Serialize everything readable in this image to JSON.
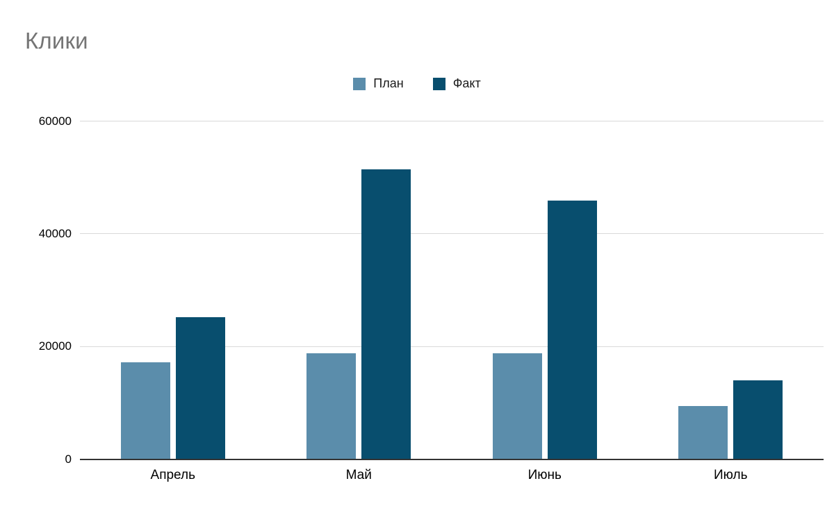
{
  "chart_data": {
    "type": "bar",
    "title": "Клики",
    "categories": [
      "Апрель",
      "Май",
      "Июнь",
      "Июль"
    ],
    "series": [
      {
        "name": "План",
        "color": "#5b8dab",
        "values": [
          17300,
          18800,
          18800,
          9500
        ]
      },
      {
        "name": "Факт",
        "color": "#084e6e",
        "values": [
          25300,
          51500,
          46000,
          14000
        ]
      }
    ],
    "xlabel": "",
    "ylabel": "",
    "ylim": [
      0,
      60000
    ],
    "yticks": [
      0,
      20000,
      40000,
      60000
    ],
    "grid": true,
    "legend_position": "top-center",
    "background": "#ffffff",
    "title_color": "#757575",
    "gridline_color": "#d9d9d9",
    "axis_line_color": "#333333"
  }
}
